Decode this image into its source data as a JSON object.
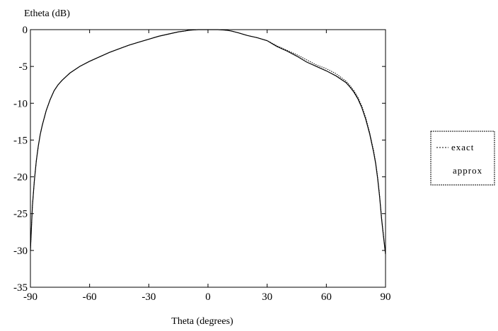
{
  "chart_data": {
    "type": "line",
    "title": "",
    "ylabel": "Etheta (dB)",
    "xlabel": "Theta (degrees)",
    "xlim": [
      -90,
      90
    ],
    "ylim": [
      -35,
      0
    ],
    "x_ticks": [
      -90,
      -60,
      -30,
      0,
      30,
      60,
      90
    ],
    "y_ticks": [
      0,
      -5,
      -10,
      -15,
      -20,
      -25,
      -30,
      -35
    ],
    "grid": false,
    "legend_position": "right, outside plot",
    "series": [
      {
        "name": "exact",
        "style": "dotted",
        "color": "#000000",
        "x": [
          -90,
          -89,
          -88,
          -87,
          -86,
          -85,
          -84,
          -82,
          -80,
          -78,
          -76,
          -74,
          -72,
          -70,
          -65,
          -60,
          -55,
          -50,
          -45,
          -40,
          -35,
          -30,
          -25,
          -20,
          -15,
          -12,
          -10,
          -8,
          -5,
          0,
          5,
          8,
          10,
          12,
          15,
          20,
          25,
          30,
          35,
          40,
          45,
          50,
          55,
          60,
          65,
          70,
          72,
          74,
          76,
          78,
          80,
          82,
          84,
          85,
          86,
          87,
          88,
          89,
          90
        ],
        "y": [
          -30,
          -24,
          -20.5,
          -17.8,
          -15.8,
          -14.2,
          -13,
          -11,
          -9.5,
          -8.3,
          -7.5,
          -6.9,
          -6.4,
          -5.9,
          -5,
          -4.3,
          -3.7,
          -3.1,
          -2.6,
          -2.1,
          -1.7,
          -1.3,
          -0.9,
          -0.6,
          -0.3,
          -0.2,
          -0.1,
          -0.05,
          0,
          0,
          0,
          -0.05,
          -0.1,
          -0.2,
          -0.4,
          -0.8,
          -1.1,
          -1.5,
          -2.2,
          -2.8,
          -3.4,
          -4.1,
          -4.8,
          -5.3,
          -6,
          -7,
          -7.6,
          -8.3,
          -9.2,
          -10.4,
          -12,
          -14,
          -16.5,
          -18,
          -20,
          -22.5,
          -25.5,
          -28,
          -30.5
        ]
      },
      {
        "name": "approx",
        "style": "solid",
        "color": "#000000",
        "x": [
          -90,
          -89,
          -88,
          -87,
          -86,
          -85,
          -84,
          -82,
          -80,
          -78,
          -76,
          -74,
          -72,
          -70,
          -65,
          -60,
          -55,
          -50,
          -45,
          -40,
          -35,
          -30,
          -25,
          -20,
          -15,
          -12,
          -10,
          -8,
          -5,
          0,
          5,
          8,
          10,
          12,
          15,
          20,
          25,
          30,
          35,
          40,
          45,
          50,
          55,
          60,
          65,
          70,
          72,
          74,
          76,
          78,
          80,
          82,
          84,
          85,
          86,
          87,
          88,
          89,
          90
        ],
        "y": [
          -30,
          -24,
          -20.5,
          -17.8,
          -15.8,
          -14.2,
          -13,
          -11,
          -9.5,
          -8.3,
          -7.5,
          -6.9,
          -6.4,
          -5.9,
          -5,
          -4.3,
          -3.7,
          -3.1,
          -2.6,
          -2.1,
          -1.7,
          -1.3,
          -0.9,
          -0.6,
          -0.3,
          -0.2,
          -0.1,
          -0.05,
          0,
          0,
          0,
          -0.05,
          -0.1,
          -0.2,
          -0.4,
          -0.8,
          -1.1,
          -1.5,
          -2.3,
          -2.9,
          -3.6,
          -4.4,
          -5,
          -5.6,
          -6.3,
          -7.2,
          -7.8,
          -8.5,
          -9.4,
          -10.6,
          -12.2,
          -14.2,
          -16.7,
          -18.2,
          -20.2,
          -22.7,
          -25.7,
          -28.2,
          -30.5
        ]
      }
    ],
    "legend": {
      "entries": [
        "exact",
        "approx"
      ]
    }
  }
}
